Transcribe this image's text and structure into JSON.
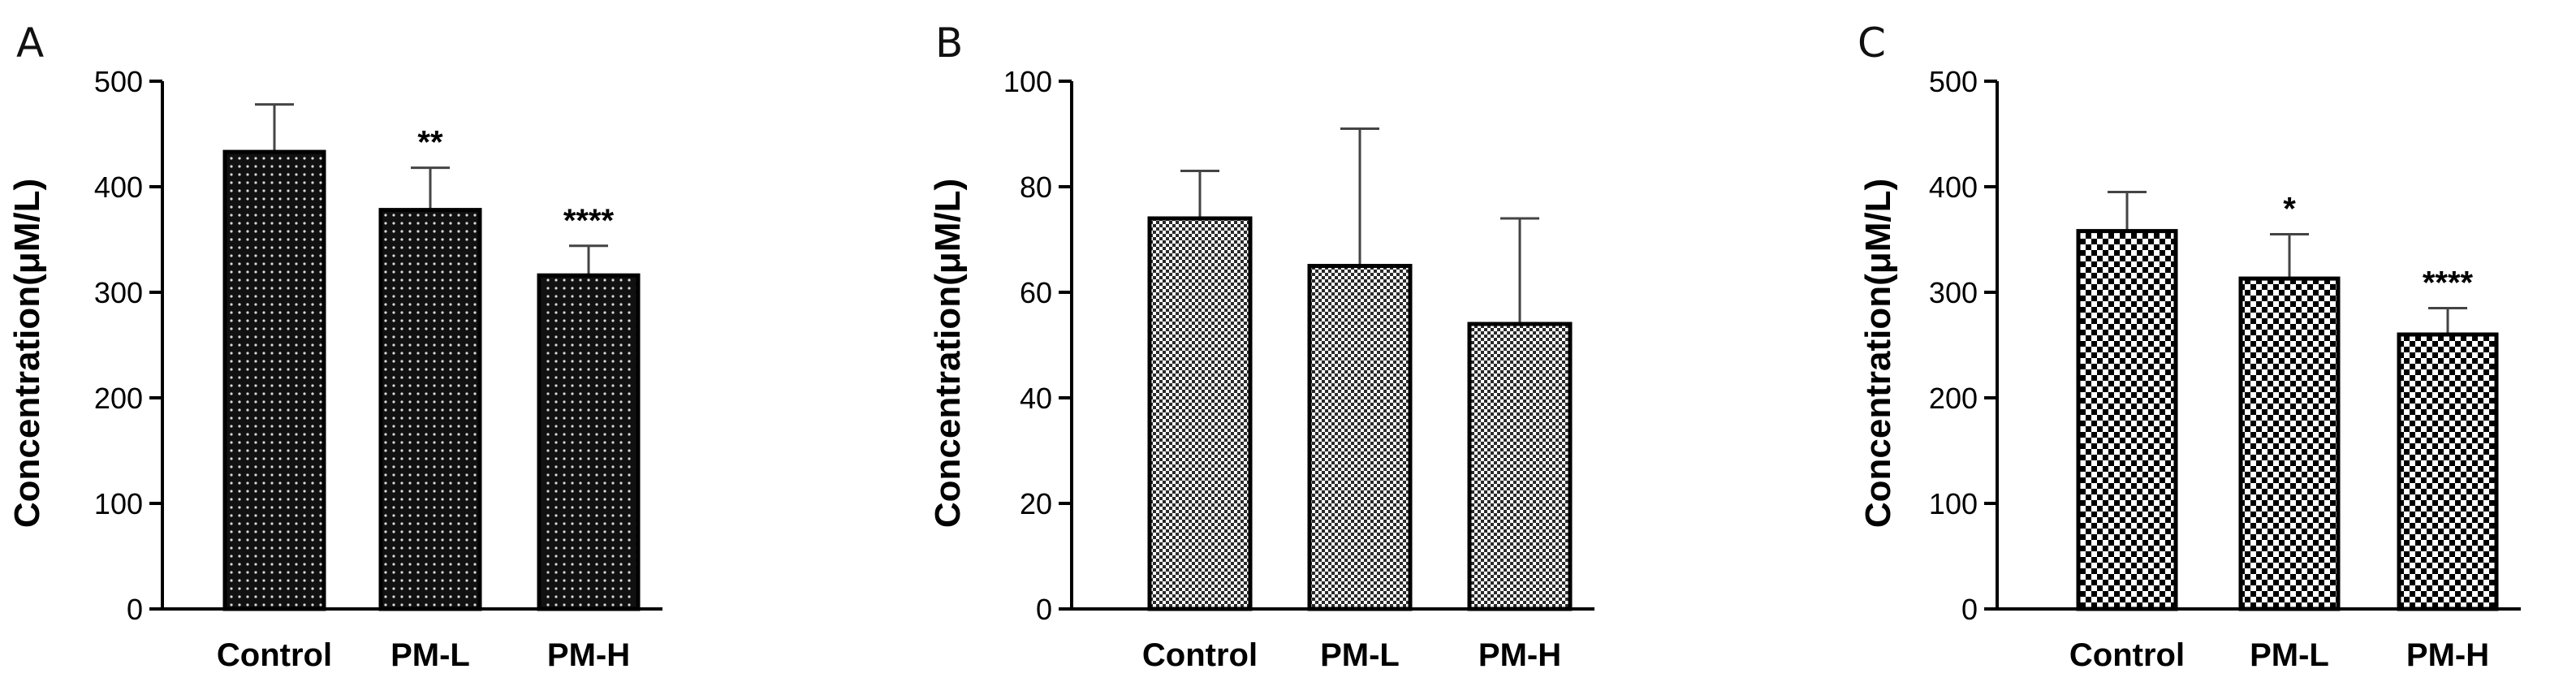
{
  "chart_data": [
    {
      "panel": "A",
      "type": "bar",
      "ylabel": "Concentration(μM/L)",
      "ylim": [
        0,
        500
      ],
      "yticks": [
        0,
        100,
        200,
        300,
        400,
        500
      ],
      "categories": [
        "Control",
        "PM-L",
        "PM-H"
      ],
      "values": [
        433,
        378,
        316
      ],
      "errors": [
        45,
        40,
        28
      ],
      "significance": [
        "",
        "**",
        "****"
      ],
      "pattern": "dots"
    },
    {
      "panel": "B",
      "type": "bar",
      "ylabel": "Concentration(μM/L)",
      "ylim": [
        0,
        100
      ],
      "yticks": [
        0,
        20,
        40,
        60,
        80,
        100
      ],
      "categories": [
        "Control",
        "PM-L",
        "PM-H"
      ],
      "values": [
        74,
        65,
        54
      ],
      "errors": [
        9,
        26,
        20
      ],
      "significance": [
        "",
        "",
        ""
      ],
      "pattern": "fine-checker"
    },
    {
      "panel": "C",
      "type": "bar",
      "ylabel": "Concentration(μM/L)",
      "ylim": [
        0,
        500
      ],
      "yticks": [
        0,
        100,
        200,
        300,
        400,
        500
      ],
      "categories": [
        "Control",
        "PM-L",
        "PM-H"
      ],
      "values": [
        358,
        313,
        260
      ],
      "errors": [
        37,
        42,
        25
      ],
      "significance": [
        "",
        "*",
        "****"
      ],
      "pattern": "coarse-checker"
    }
  ]
}
